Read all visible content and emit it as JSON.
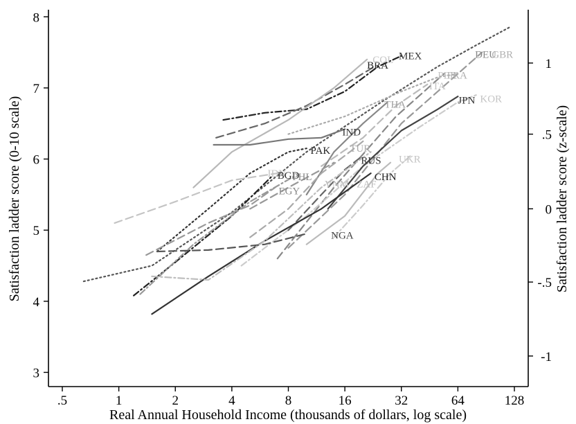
{
  "chart_data": {
    "type": "line",
    "xlabel": "Real Annual Household Income (thousands of dollars, log scale)",
    "ylabel": "Satisfaction ladder score (0-10 scale)",
    "y2label": "Satisfaction ladder score (z-scale)",
    "x_scale": "log2",
    "xlim": [
      0.5,
      128
    ],
    "ylim": [
      2.8,
      8.1
    ],
    "x_ticks": [
      {
        "value": 0.5,
        "label": ".5"
      },
      {
        "value": 1,
        "label": "1"
      },
      {
        "value": 2,
        "label": "2"
      },
      {
        "value": 4,
        "label": "4"
      },
      {
        "value": 8,
        "label": "8"
      },
      {
        "value": 16,
        "label": "16"
      },
      {
        "value": 32,
        "label": "32"
      },
      {
        "value": 64,
        "label": "64"
      },
      {
        "value": 128,
        "label": "128"
      }
    ],
    "y_ticks": [
      {
        "value": 3,
        "label": "3"
      },
      {
        "value": 4,
        "label": "4"
      },
      {
        "value": 5,
        "label": "5"
      },
      {
        "value": 6,
        "label": "6"
      },
      {
        "value": 7,
        "label": "7"
      },
      {
        "value": 8,
        "label": "8"
      }
    ],
    "y2_ticks": [
      {
        "ladder": 7.35,
        "label": "1"
      },
      {
        "ladder": 6.35,
        "label": ".5"
      },
      {
        "ladder": 5.3,
        "label": "0"
      },
      {
        "ladder": 4.27,
        "label": "-.5"
      },
      {
        "ladder": 3.23,
        "label": "-1"
      }
    ],
    "grid": false,
    "legend": "none",
    "series": [
      {
        "name": "MEX",
        "color": "#222222",
        "dash": "dashdot",
        "x": [
          3.6,
          6,
          10,
          16,
          24,
          32
        ],
        "y": [
          6.55,
          6.65,
          6.7,
          6.95,
          7.3,
          7.45
        ]
      },
      {
        "name": "BRA",
        "color": "#666666",
        "dash": "dash",
        "x": [
          3.3,
          6,
          10,
          16,
          23
        ],
        "y": [
          6.3,
          6.5,
          6.75,
          7.05,
          7.3
        ]
      },
      {
        "name": "COL",
        "color": "#b8b8b8",
        "dash": "solid",
        "x": [
          2.5,
          4,
          8,
          14,
          21
        ],
        "y": [
          5.6,
          6.1,
          6.55,
          7.0,
          7.4
        ]
      },
      {
        "name": "DEU",
        "color": "#999999",
        "dash": "dash",
        "x": [
          8,
          16,
          32,
          64,
          86
        ],
        "y": [
          4.75,
          5.5,
          6.5,
          7.2,
          7.5
        ]
      },
      {
        "name": "GBR",
        "color": "#555555",
        "dash": "dot",
        "x": [
          0.65,
          1.5,
          4,
          10,
          25,
          50,
          80,
          120
        ],
        "y": [
          4.28,
          4.5,
          5.25,
          6.1,
          6.8,
          7.3,
          7.6,
          7.85
        ]
      },
      {
        "name": "FRA",
        "color": "#aaaaaa",
        "dash": "dot",
        "x": [
          8,
          16,
          32,
          50,
          64
        ],
        "y": [
          6.35,
          6.6,
          6.95,
          7.15,
          7.2
        ]
      },
      {
        "name": "PER",
        "color": "#888888",
        "dash": "dash",
        "x": [
          7,
          14,
          30,
          54
        ],
        "y": [
          4.6,
          5.6,
          6.6,
          7.2
        ]
      },
      {
        "name": "ITA",
        "color": "#bbbbbb",
        "dash": "dash",
        "x": [
          12,
          20,
          30,
          44
        ],
        "y": [
          5.9,
          6.3,
          6.75,
          7.05
        ]
      },
      {
        "name": "KOR",
        "color": "#cccccc",
        "dash": "dashdot",
        "x": [
          4.5,
          10,
          20,
          40,
          64,
          80
        ],
        "y": [
          4.5,
          5.2,
          5.9,
          6.45,
          6.8,
          6.9
        ]
      },
      {
        "name": "JPN",
        "color": "#444444",
        "dash": "solid",
        "x": [
          13,
          20,
          32,
          50,
          64
        ],
        "y": [
          5.3,
          5.9,
          6.4,
          6.7,
          6.88
        ]
      },
      {
        "name": "THA",
        "color": "#888888",
        "dash": "solid",
        "x": [
          10,
          14,
          20,
          27
        ],
        "y": [
          5.5,
          6.1,
          6.5,
          6.8
        ]
      },
      {
        "name": "IND",
        "color": "#777777",
        "dash": "solid",
        "x": [
          3.2,
          5,
          8,
          12,
          16
        ],
        "y": [
          6.2,
          6.2,
          6.28,
          6.3,
          6.42
        ]
      },
      {
        "name": "PAK",
        "color": "#333333",
        "dash": "dot",
        "x": [
          1.6,
          3,
          5,
          8,
          10
        ],
        "y": [
          4.7,
          5.3,
          5.8,
          6.1,
          6.15
        ]
      },
      {
        "name": "TUR",
        "color": "#aaaaaa",
        "dash": "dash",
        "x": [
          5,
          8,
          12,
          17,
          20
        ],
        "y": [
          4.9,
          5.3,
          5.8,
          6.1,
          6.25
        ]
      },
      {
        "name": "RUS",
        "color": "#666666",
        "dash": "dash",
        "x": [
          8,
          12,
          16,
          20
        ],
        "y": [
          5.0,
          5.5,
          5.85,
          6.05
        ]
      },
      {
        "name": "UKR",
        "color": "#cccccc",
        "dash": "dashdot",
        "x": [
          14,
          20,
          28,
          36
        ],
        "y": [
          4.9,
          5.35,
          5.8,
          6.05
        ]
      },
      {
        "name": "VNM",
        "color": "#999999",
        "dash": "dash",
        "x": [
          5,
          8,
          12,
          14
        ],
        "y": [
          5.3,
          5.6,
          5.85,
          5.95
        ]
      },
      {
        "name": "ZAF",
        "color": "#bbbbbb",
        "dash": "solid",
        "x": [
          10,
          16,
          24,
          28
        ],
        "y": [
          4.8,
          5.2,
          5.8,
          5.95
        ]
      },
      {
        "name": "IDN",
        "color": "#c4c4c4",
        "dash": "dash",
        "x": [
          0.95,
          2,
          4,
          7
        ],
        "y": [
          5.1,
          5.4,
          5.7,
          5.8
        ]
      },
      {
        "name": "BGD",
        "color": "#222222",
        "dash": "dashdot",
        "x": [
          1.2,
          2,
          4,
          6.5
        ],
        "y": [
          4.08,
          4.55,
          5.2,
          5.75
        ]
      },
      {
        "name": "PHL",
        "color": "#999999",
        "dash": "dashdot",
        "x": [
          1.3,
          2.5,
          5,
          8.5
        ],
        "y": [
          4.1,
          4.8,
          5.4,
          5.75
        ]
      },
      {
        "name": "EGY",
        "color": "#999999",
        "dash": "dash",
        "x": [
          1.4,
          3,
          5,
          6.8
        ],
        "y": [
          4.65,
          5.1,
          5.35,
          5.6
        ]
      },
      {
        "name": "CHN",
        "color": "#333333",
        "dash": "solid",
        "x": [
          1.5,
          3,
          6,
          12,
          22
        ],
        "y": [
          3.82,
          4.35,
          4.85,
          5.3,
          5.8
        ]
      },
      {
        "name": "NGA",
        "color": "#555555",
        "dash": "dash",
        "x": [
          1.6,
          3,
          6,
          10
        ],
        "y": [
          4.7,
          4.72,
          4.8,
          4.95
        ]
      },
      {
        "name": "",
        "color": "#bdbdbd",
        "dash": "dashdot",
        "x": [
          1.5,
          3,
          6,
          12,
          22
        ],
        "y": [
          4.35,
          4.3,
          4.85,
          5.6,
          6.1
        ]
      }
    ],
    "labels": [
      {
        "text": "MEX",
        "x": 31,
        "y": 7.45,
        "color": "#333333"
      },
      {
        "text": "BRA",
        "x": 21,
        "y": 7.32,
        "color": "#222222"
      },
      {
        "text": "COL",
        "x": 22.5,
        "y": 7.4,
        "color": "#c4c4c4"
      },
      {
        "text": "DEU",
        "x": 79,
        "y": 7.47,
        "color": "#888888"
      },
      {
        "text": "GBR",
        "x": 97,
        "y": 7.47,
        "color": "#b0b0b0"
      },
      {
        "text": "PER",
        "x": 50,
        "y": 7.18,
        "color": "#c4c4c4"
      },
      {
        "text": "FRA",
        "x": 56,
        "y": 7.18,
        "color": "#b0b0b0"
      },
      {
        "text": "ITA",
        "x": 45,
        "y": 7.03,
        "color": "#c4c4c4"
      },
      {
        "text": "JPN",
        "x": 64,
        "y": 6.83,
        "color": "#333333"
      },
      {
        "text": "KOR",
        "x": 84,
        "y": 6.85,
        "color": "#c4c4c4"
      },
      {
        "text": "THA",
        "x": 26,
        "y": 6.77,
        "color": "#a0a0a0"
      },
      {
        "text": "IND",
        "x": 15.5,
        "y": 6.38,
        "color": "#333333"
      },
      {
        "text": "PAK",
        "x": 10.5,
        "y": 6.12,
        "color": "#222222"
      },
      {
        "text": "TUR",
        "x": 17,
        "y": 6.15,
        "color": "#aaaaaa"
      },
      {
        "text": "RUS",
        "x": 19.5,
        "y": 5.98,
        "color": "#333333"
      },
      {
        "text": "UKR",
        "x": 31,
        "y": 6.0,
        "color": "#c4c4c4"
      },
      {
        "text": "IDN",
        "x": 6.2,
        "y": 5.8,
        "color": "#c4c4c4"
      },
      {
        "text": "BGD",
        "x": 7.0,
        "y": 5.77,
        "color": "#333333"
      },
      {
        "text": "PHL",
        "x": 8.4,
        "y": 5.75,
        "color": "#888888"
      },
      {
        "text": "VNM",
        "x": 12.5,
        "y": 5.65,
        "color": "#bbbbbb"
      },
      {
        "text": "ZAF",
        "x": 18.5,
        "y": 5.65,
        "color": "#bbbbbb"
      },
      {
        "text": "EGY",
        "x": 7.1,
        "y": 5.55,
        "color": "#888888"
      },
      {
        "text": "CHN",
        "x": 23,
        "y": 5.75,
        "color": "#222222"
      },
      {
        "text": "NGA",
        "x": 13.5,
        "y": 4.93,
        "color": "#444444"
      }
    ]
  }
}
